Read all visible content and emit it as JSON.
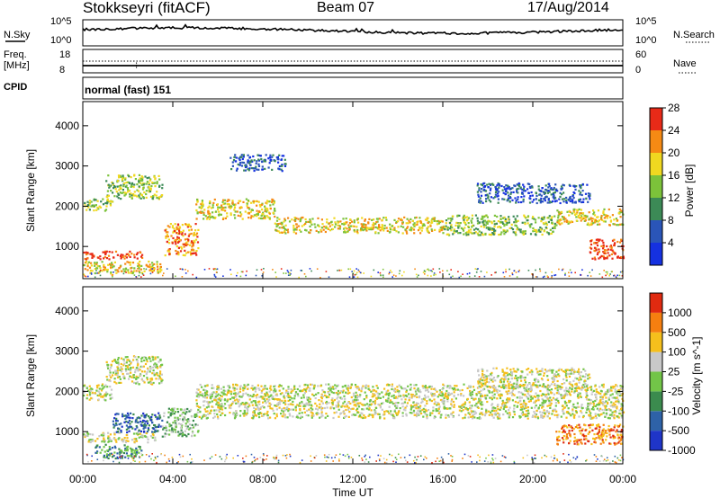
{
  "header": {
    "station": "Stokkseyri (fitACF)",
    "beam": "Beam 07",
    "date": "17/Aug/2014"
  },
  "noise_panel": {
    "left_label": "N.Sky",
    "right_label": "N.Search",
    "left_ticks": [
      "10^5",
      "10^0"
    ],
    "right_ticks": [
      "10^5",
      "10^0"
    ]
  },
  "freq_panel": {
    "label_top": "Freq.",
    "label_unit": "[MHz]",
    "left_ticks": [
      "18",
      "8"
    ],
    "right_ticks": [
      "60",
      "0"
    ],
    "right_label": "Nave"
  },
  "cpid_panel": {
    "label": "CPID",
    "text": "normal (fast) 151"
  },
  "x_axis": {
    "ticks": [
      "00:00",
      "04:00",
      "08:00",
      "12:00",
      "16:00",
      "20:00",
      "00:00"
    ],
    "label": "Time UT"
  },
  "chart_data": [
    {
      "type": "heatmap",
      "quantity": "Power",
      "ylabel": "Slant Range [km]",
      "yticks": [
        1000,
        2000,
        3000,
        4000
      ],
      "ylim": [
        200,
        4600
      ],
      "xlim_hours": [
        0,
        24
      ],
      "colorbar": {
        "label": "Power [dB]",
        "ticks": [
          "4",
          "8",
          "12",
          "16",
          "20",
          "24",
          "28"
        ],
        "colors": [
          "#1531e0",
          "#2a55b8",
          "#3c8a56",
          "#7cc23a",
          "#f0d820",
          "#f58a14",
          "#e82a18"
        ]
      },
      "bands": [
        {
          "t_start": 0.0,
          "t_end": 1.3,
          "range_start": 1900,
          "range_end": 2200,
          "level": 3
        },
        {
          "t_start": 1.0,
          "t_end": 3.5,
          "range_start": 2200,
          "range_end": 2800,
          "level": 3
        },
        {
          "t_start": 0.0,
          "t_end": 2.6,
          "range_start": 700,
          "range_end": 900,
          "level": 6
        },
        {
          "t_start": 0.0,
          "t_end": 3.5,
          "range_start": 350,
          "range_end": 650,
          "level": 4
        },
        {
          "t_start": 3.6,
          "t_end": 5.1,
          "range_start": 800,
          "range_end": 1600,
          "level": 5
        },
        {
          "t_start": 5.0,
          "t_end": 8.5,
          "range_start": 1700,
          "range_end": 2200,
          "level": 4
        },
        {
          "t_start": 8.5,
          "t_end": 16.0,
          "range_start": 1350,
          "range_end": 1750,
          "level": 4
        },
        {
          "t_start": 16.0,
          "t_end": 21.0,
          "range_start": 1300,
          "range_end": 1800,
          "level": 3
        },
        {
          "t_start": 21.0,
          "t_end": 24.0,
          "range_start": 1550,
          "range_end": 1950,
          "level": 4
        },
        {
          "t_start": 22.5,
          "t_end": 24.0,
          "range_start": 700,
          "range_end": 1200,
          "level": 6
        },
        {
          "t_start": 6.5,
          "t_end": 9.0,
          "range_start": 2900,
          "range_end": 3300,
          "level": 1
        },
        {
          "t_start": 17.5,
          "t_end": 22.5,
          "range_start": 2100,
          "range_end": 2600,
          "level": 1
        }
      ]
    },
    {
      "type": "heatmap",
      "quantity": "Velocity",
      "ylabel": "Slant Range [km]",
      "yticks": [
        1000,
        2000,
        3000,
        4000
      ],
      "ylim": [
        200,
        4600
      ],
      "xlim_hours": [
        0,
        24
      ],
      "colorbar": {
        "label": "Velocity [m s^-1]",
        "ticks": [
          "1000",
          "500",
          "100",
          "25",
          "-25",
          "-100",
          "-500",
          "-1000"
        ],
        "colors": [
          "#1f35c8",
          "#2e62a8",
          "#3b8b4e",
          "#72c548",
          "#c8c8c8",
          "#f5bf1c",
          "#f57f10",
          "#e02a10"
        ]
      },
      "bands": [
        {
          "t_start": 0.0,
          "t_end": 1.3,
          "range_start": 1800,
          "range_end": 2200,
          "level": 4
        },
        {
          "t_start": 1.0,
          "t_end": 3.5,
          "range_start": 2200,
          "range_end": 2900,
          "level": 4
        },
        {
          "t_start": 0.0,
          "t_end": 3.2,
          "range_start": 750,
          "range_end": 1000,
          "level": 4
        },
        {
          "t_start": 0.5,
          "t_end": 2.6,
          "range_start": 350,
          "range_end": 700,
          "level": 2
        },
        {
          "t_start": 1.3,
          "t_end": 3.5,
          "range_start": 1000,
          "range_end": 1500,
          "level": 1
        },
        {
          "t_start": 3.5,
          "t_end": 5.1,
          "range_start": 900,
          "range_end": 1600,
          "level": 3
        },
        {
          "t_start": 5.0,
          "t_end": 24.0,
          "range_start": 1350,
          "range_end": 2200,
          "level": 4
        },
        {
          "t_start": 21.0,
          "t_end": 24.0,
          "range_start": 700,
          "range_end": 1200,
          "level": 6
        },
        {
          "t_start": 17.5,
          "t_end": 22.5,
          "range_start": 2100,
          "range_end": 2600,
          "level": 4
        }
      ]
    }
  ]
}
